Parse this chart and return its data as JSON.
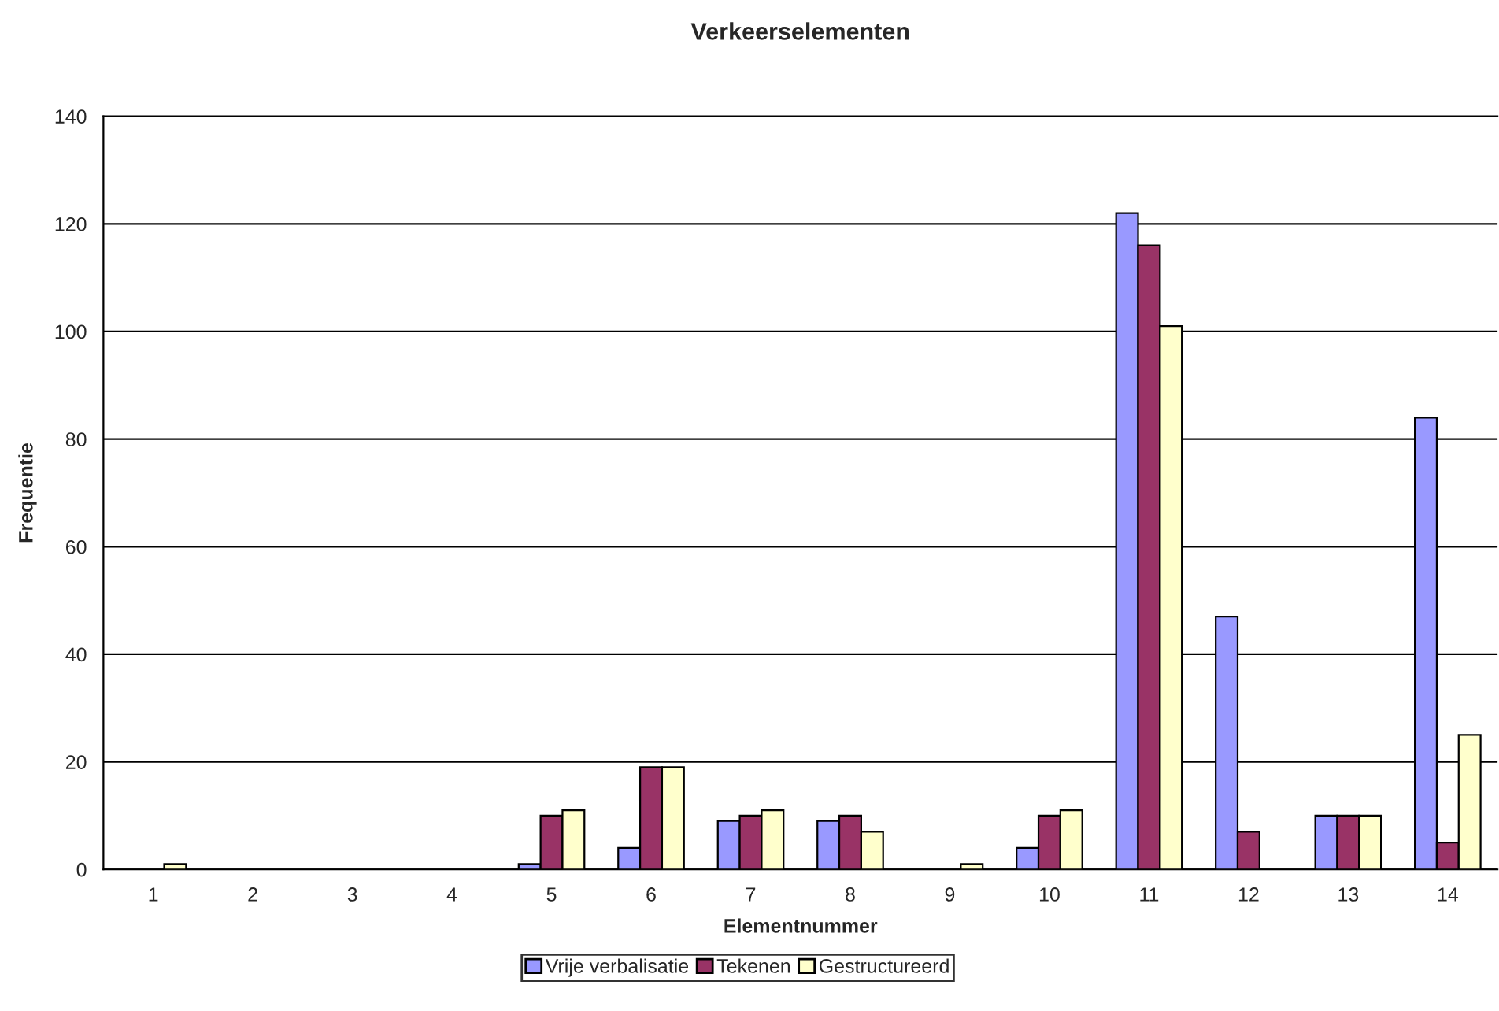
{
  "chart_data": {
    "type": "bar",
    "title": "Verkeerselementen",
    "xlabel": "Elementnummer",
    "ylabel": "Frequentie",
    "categories": [
      "1",
      "2",
      "3",
      "4",
      "5",
      "6",
      "7",
      "8",
      "9",
      "10",
      "11",
      "12",
      "13",
      "14"
    ],
    "series": [
      {
        "name": "Vrije verbalisatie",
        "color": "#9999ff",
        "values": [
          0,
          0,
          0,
          0,
          1,
          4,
          9,
          9,
          0,
          4,
          122,
          47,
          10,
          84
        ]
      },
      {
        "name": "Tekenen",
        "color": "#993366",
        "values": [
          0,
          0,
          0,
          0,
          10,
          19,
          10,
          10,
          0,
          10,
          116,
          7,
          10,
          5
        ]
      },
      {
        "name": "Gestructureerd",
        "color": "#ffffcc",
        "values": [
          1,
          0,
          0,
          0,
          11,
          19,
          11,
          7,
          1,
          11,
          101,
          0,
          10,
          25
        ]
      }
    ],
    "ylim": [
      0,
      140
    ],
    "yticks": [
      0,
      20,
      40,
      60,
      80,
      100,
      120,
      140
    ],
    "grid": "y",
    "legend": "bottom"
  }
}
